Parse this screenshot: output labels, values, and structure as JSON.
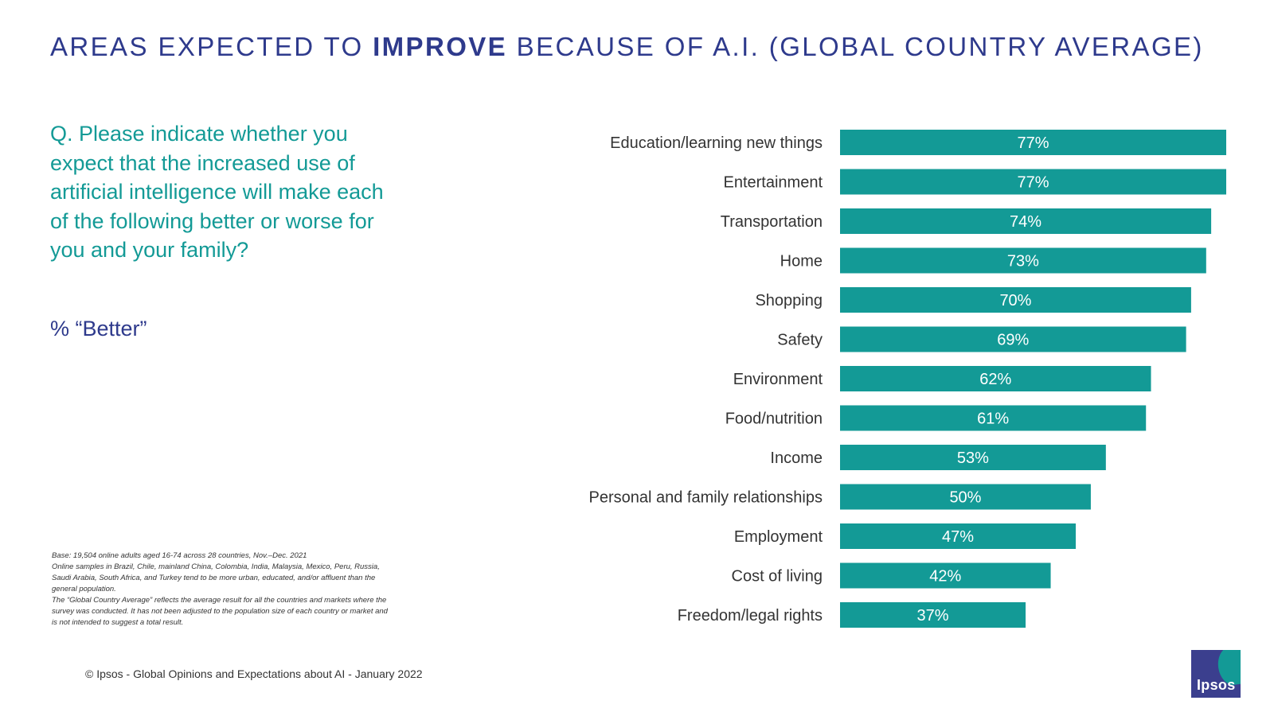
{
  "title": {
    "prefix": "AREAS EXPECTED TO ",
    "emphasis": "IMPROVE",
    "suffix": " BECAUSE OF A.I. (GLOBAL COUNTRY AVERAGE)"
  },
  "question": "Q. Please indicate whether you expect that the increased use of artificial intelligence will make each of the following better or worse for you and your family?",
  "measure": "% “Better”",
  "base_note": [
    "Base: 19,504 online adults aged 16-74 across 28 countries, Nov.–Dec. 2021",
    "Online samples in Brazil, Chile, mainland China, Colombia, India, Malaysia, Mexico, Peru, Russia, Saudi Arabia, South Africa, and Turkey tend to be more urban, educated, and/or affluent than the general population.",
    "The “Global Country Average” reflects the average result for all the countries and markets where the survey was conducted. It has not been adjusted to the population size of each country or market and is not intended to suggest a total result."
  ],
  "copyright": "© Ipsos - Global Opinions and Expectations about AI - January 2022",
  "logo": {
    "text": "Ipsos"
  },
  "colors": {
    "title": "#2e3a8c",
    "question": "#139a96",
    "bar": "#139a96",
    "logo_bg": "#3b3f8e"
  },
  "chart_data": {
    "type": "bar",
    "orientation": "horizontal",
    "categories": [
      "Education/learning new things",
      "Entertainment",
      "Transportation",
      "Home",
      "Shopping",
      "Safety",
      "Environment",
      "Food/nutrition",
      "Income",
      "Personal and family relationships",
      "Employment",
      "Cost of living",
      "Freedom/legal rights"
    ],
    "values": [
      77,
      77,
      74,
      73,
      70,
      69,
      62,
      61,
      53,
      50,
      47,
      42,
      37
    ],
    "value_labels": [
      "77%",
      "77%",
      "74%",
      "73%",
      "70%",
      "69%",
      "62%",
      "61%",
      "53%",
      "50%",
      "47%",
      "42%",
      "37%"
    ],
    "unit": "%",
    "xlim": [
      0,
      77
    ],
    "grid": false,
    "legend": "none"
  }
}
